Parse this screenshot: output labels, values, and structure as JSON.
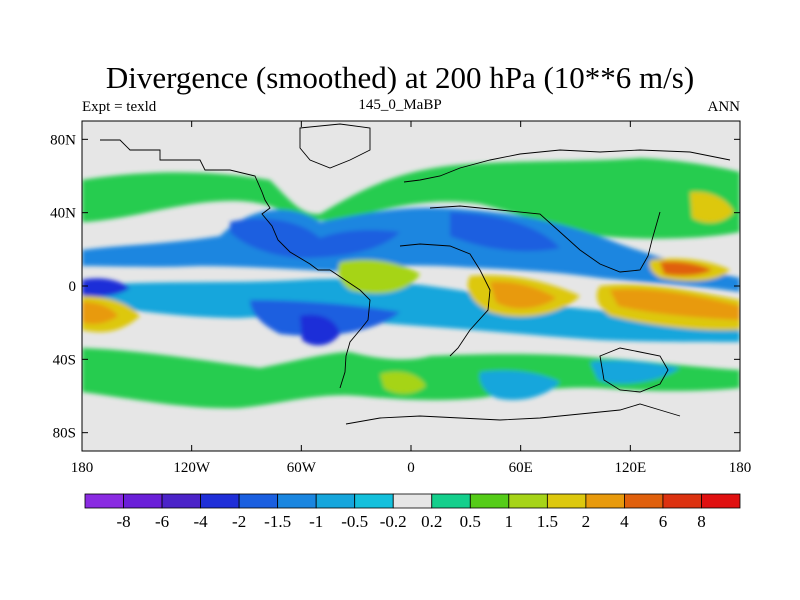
{
  "chart_data": {
    "type": "filled-contour-map",
    "title": "Divergence (smoothed) at 200 hPa (10**6 m/s)",
    "left_subtitle": "Expt = texld",
    "center_subtitle": "145_0_MaBP",
    "right_subtitle": "ANN",
    "x_ticks": [
      {
        "value": -180,
        "label": "180"
      },
      {
        "value": -120,
        "label": "120W"
      },
      {
        "value": -60,
        "label": "60W"
      },
      {
        "value": 0,
        "label": "0"
      },
      {
        "value": 60,
        "label": "60E"
      },
      {
        "value": 120,
        "label": "120E"
      },
      {
        "value": 180,
        "label": "180"
      }
    ],
    "y_ticks": [
      {
        "value": 80,
        "label": "80N"
      },
      {
        "value": 40,
        "label": "40N"
      },
      {
        "value": 0,
        "label": "0"
      },
      {
        "value": -40,
        "label": "40S"
      },
      {
        "value": -80,
        "label": "80S"
      }
    ],
    "xlim": [
      -180,
      180
    ],
    "ylim": [
      -90,
      90
    ],
    "colorbar": {
      "levels": [
        "-8",
        "-6",
        "-4",
        "-2",
        "-1.5",
        "-1",
        "-0.5",
        "-0.2",
        "0.2",
        "0.5",
        "1",
        "1.5",
        "2",
        "4",
        "6",
        "8"
      ],
      "colors": [
        "#8a2be2",
        "#6a1fd8",
        "#4b23c8",
        "#1f2fd8",
        "#1a5fe0",
        "#1a86e0",
        "#16a6dc",
        "#14c0dc",
        "#e6e6e6",
        "#14cf8c",
        "#55cc18",
        "#a6d418",
        "#ddc80e",
        "#e89a0c",
        "#e0600c",
        "#dc3210",
        "#e01010"
      ]
    },
    "features": [
      {
        "kind": "convergence",
        "center": [
          -165,
          0
        ]
      },
      {
        "kind": "convergence",
        "center": [
          -50,
          5
        ]
      },
      {
        "kind": "convergence",
        "center": [
          -50,
          -25
        ]
      },
      {
        "kind": "convergence",
        "center": [
          40,
          35
        ]
      },
      {
        "kind": "divergence",
        "center": [
          -170,
          -15
        ]
      },
      {
        "kind": "divergence",
        "center": [
          -155,
          -25
        ]
      },
      {
        "kind": "divergence",
        "center": [
          -30,
          0
        ]
      },
      {
        "kind": "divergence",
        "center": [
          45,
          -5
        ]
      },
      {
        "kind": "divergence",
        "center": [
          110,
          -10
        ]
      },
      {
        "kind": "divergence",
        "center": [
          140,
          5
        ]
      },
      {
        "kind": "divergence",
        "center": [
          165,
          40
        ]
      }
    ]
  }
}
